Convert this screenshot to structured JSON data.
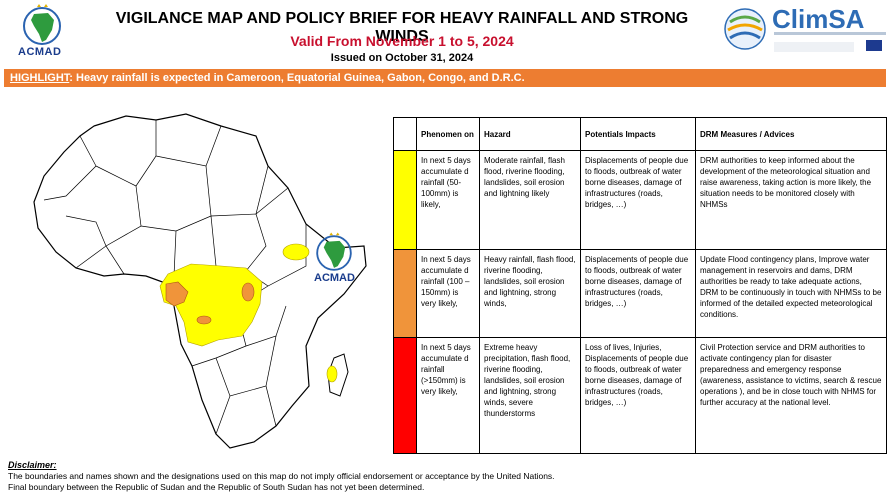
{
  "header": {
    "left_logo_text": "ACMAD",
    "title": "VIGILANCE MAP AND POLICY BRIEF FOR HEAVY RAINFALL AND STRONG WINDS",
    "valid": "Valid From November 1 to 5, 2024",
    "issued": "Issued on  October 31, 2024",
    "right_logo_text": "ClimSA"
  },
  "highlight": {
    "label": "HIGHLIGHT",
    "text": ":  Heavy rainfall is expected in Cameroon, Equatorial Guinea, Gabon, Congo, and D.R.C."
  },
  "map": {
    "logo_text": "ACMAD",
    "colors": {
      "yellow": "#ffff00",
      "orange": "#f0943a",
      "red": "#ff0000",
      "land": "#ffffff",
      "border": "#000000"
    }
  },
  "table": {
    "headers": [
      "",
      "Phenomen on",
      "Hazard",
      "Potentials Impacts",
      "DRM Measures / Advices"
    ],
    "rows": [
      {
        "color": "#ffff00",
        "phenomenon": "In next 5 days accumulate d rainfall (50-100mm) is likely,",
        "hazard": "Moderate rainfall, flash flood, riverine flooding, landslides, soil erosion and lightning likely",
        "impacts": "Displacements of people due to floods, outbreak of water borne diseases, damage of infrastructures (roads, bridges, …)",
        "measures": "DRM authorities to keep informed about the development of the meteorological situation and raise awareness, taking action is more likely, the situation needs to be monitored closely with NHMSs"
      },
      {
        "color": "#f0943a",
        "phenomenon": "In next 5 days accumulate d rainfall (100 – 150mm) is very likely,",
        "hazard": "Heavy rainfall, flash flood, riverine flooding, landslides, soil erosion and lightning, strong winds,",
        "impacts": "Displacements of people due to floods, outbreak of water borne diseases, damage of infrastructures (roads, bridges, …)",
        "measures": "Update Flood contingency plans, Improve water management in reservoirs and dams, DRM authorities be ready to take adequate actions, DRM to be continuously in touch with NHMSs to be informed of the detailed expected meteorological conditions."
      },
      {
        "color": "#ff0000",
        "phenomenon": "In next 5 days accumulate d rainfall (>150mm) is very likely,",
        "hazard": "Extreme heavy precipitation, flash flood, riverine flooding, landslides, soil erosion and lightning, strong winds, severe thunderstorms",
        "impacts": "Loss of lives,  Injuries, Displacements of people due to floods, outbreak of water borne diseases, damage of infrastructures (roads, bridges, …)",
        "measures": "Civil Protection service and DRM authorities to activate contingency plan for disaster preparedness and emergency response (awareness, assistance to victims, search & rescue operations ), and be in close touch with NHMS for further accuracy at the national level."
      }
    ]
  },
  "disclaimer": {
    "title": "Disclaimer:",
    "line1": "The boundaries and names shown and the designations used on this map do not imply official endorsement or acceptance by the United Nations.",
    "line2": "Final boundary between the Republic of Sudan and the Republic of South Sudan has not yet been determined."
  }
}
